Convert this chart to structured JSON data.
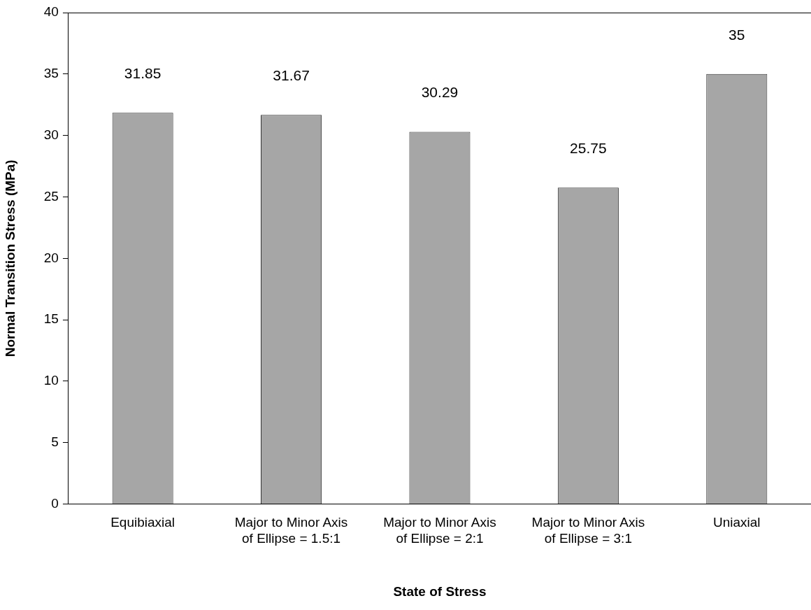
{
  "chart_data": {
    "type": "bar",
    "xlabel": "State of Stress",
    "ylabel": "Normal Transition Stress (MPa)",
    "categories": [
      "Equibiaxial",
      "Major to Minor Axis of Ellipse = 1.5:1",
      "Major to Minor Axis of Ellipse = 2:1",
      "Major to Minor Axis of Ellipse = 3:1",
      "Uniaxial"
    ],
    "values": [
      31.85,
      31.67,
      30.29,
      25.75,
      35
    ],
    "color": "#a6a6a6",
    "ylim": [
      0,
      40
    ],
    "yticks": [
      0,
      5,
      10,
      15,
      20,
      25,
      30,
      35,
      40
    ],
    "grid": false,
    "legend": false,
    "data_labels": true
  }
}
